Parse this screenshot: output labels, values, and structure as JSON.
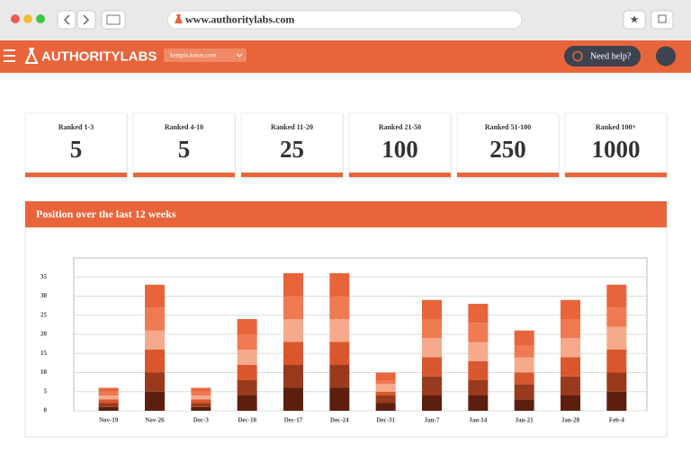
{
  "browser": {
    "url": "www.authoritylabs.com"
  },
  "header": {
    "logo": "AUTHORITYLABS",
    "domain": "kempis.koors.com",
    "help": "Need help?"
  },
  "cards": [
    {
      "label": "Ranked 1-3",
      "value": 5
    },
    {
      "label": "Ranked 4-10",
      "value": 5
    },
    {
      "label": "Ranked 11-20",
      "value": 25
    },
    {
      "label": "Ranked 21-50",
      "value": 100
    },
    {
      "label": "Ranked 51-100",
      "value": 250
    },
    {
      "label": "Ranked 100+",
      "value": 1000
    }
  ],
  "chart_data": {
    "type": "stacked-bar",
    "title": "Position over the last 12 weeks",
    "categories": [
      "Nov-19",
      "Nov-26",
      "Dec-3",
      "Dec-10",
      "Dec-17",
      "Dec-24",
      "Dec-31",
      "Jan-7",
      "Jan-14",
      "Jan-21",
      "Jan-28",
      "Feb-4"
    ],
    "series": [
      {
        "color": "#5c1f0f",
        "values": [
          1,
          5,
          1,
          4,
          6,
          6,
          2,
          4,
          4,
          3,
          4,
          5
        ]
      },
      {
        "color": "#9a3a1c",
        "values": [
          1,
          5,
          1,
          4,
          6,
          6,
          2,
          5,
          4,
          4,
          5,
          5
        ]
      },
      {
        "color": "#d9572e",
        "values": [
          1,
          6,
          1,
          4,
          6,
          6,
          1,
          5,
          5,
          3,
          5,
          6
        ]
      },
      {
        "color": "#f7a98c",
        "values": [
          1,
          5,
          1,
          4,
          6,
          6,
          2,
          5,
          5,
          4,
          5,
          6
        ]
      },
      {
        "color": "#ef7a52",
        "values": [
          1,
          6,
          1,
          4,
          6,
          6,
          1,
          5,
          5,
          3,
          5,
          5
        ]
      },
      {
        "color": "#e8643a",
        "values": [
          1,
          6,
          1,
          4,
          6,
          6,
          2,
          5,
          5,
          4,
          5,
          6
        ]
      }
    ],
    "ylim": [
      0,
      40
    ],
    "yticks": [
      0,
      5,
      10,
      15,
      20,
      25,
      30,
      35
    ],
    "grid": true
  }
}
